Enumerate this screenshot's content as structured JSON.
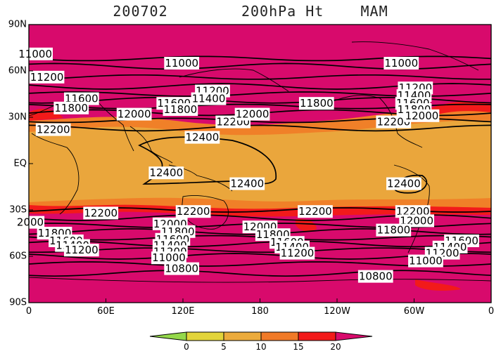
{
  "title": "200702        200hPa Ht    MAM",
  "colors": {
    "ocean_base": "#d80a6c",
    "band_orange": "#f08028",
    "band_yellow": "#eaa63c",
    "band_red": "#f21a1a",
    "contour": "#000000",
    "coast": "#000000"
  },
  "axes": {
    "lat_ticks": [
      "90N",
      "60N",
      "30N",
      "EQ",
      "30S",
      "60S",
      "90S"
    ],
    "lon_ticks": [
      "0",
      "60E",
      "120E",
      "180",
      "120W",
      "60W",
      "0"
    ]
  },
  "contour_labels": [
    {
      "text": "11000",
      "lon": 5,
      "lat": 71
    },
    {
      "text": "11200",
      "lon": 14,
      "lat": 56
    },
    {
      "text": "11600",
      "lon": 41,
      "lat": 42
    },
    {
      "text": "11800",
      "lon": 33,
      "lat": 36
    },
    {
      "text": "12000",
      "lon": 82,
      "lat": 32
    },
    {
      "text": "12200",
      "lon": 19,
      "lat": 22
    },
    {
      "text": "11000",
      "lon": 119,
      "lat": 65
    },
    {
      "text": "11200",
      "lon": 143,
      "lat": 47
    },
    {
      "text": "11400",
      "lon": 140,
      "lat": 42
    },
    {
      "text": "11600",
      "lon": 113,
      "lat": 39
    },
    {
      "text": "11800",
      "lon": 118,
      "lat": 35
    },
    {
      "text": "12200",
      "lon": 159,
      "lat": 27
    },
    {
      "text": "12000",
      "lon": 174,
      "lat": 32
    },
    {
      "text": "12400",
      "lon": 135,
      "lat": 17
    },
    {
      "text": "11800",
      "lon": 224,
      "lat": 39
    },
    {
      "text": "12200",
      "lon": 284,
      "lat": 27
    },
    {
      "text": "11000",
      "lon": 290,
      "lat": 65
    },
    {
      "text": "11200",
      "lon": 301,
      "lat": 49
    },
    {
      "text": "11400",
      "lon": 300,
      "lat": 44
    },
    {
      "text": "11600",
      "lon": 299,
      "lat": 39
    },
    {
      "text": "11800",
      "lon": 300,
      "lat": 35
    },
    {
      "text": "12000",
      "lon": 306,
      "lat": 31
    },
    {
      "text": "12400",
      "lon": 107,
      "lat": -6
    },
    {
      "text": "12400",
      "lon": 170,
      "lat": -13
    },
    {
      "text": "12400",
      "lon": 292,
      "lat": -13
    },
    {
      "text": "12200",
      "lon": 56,
      "lat": -32
    },
    {
      "text": "2000",
      "lon": 0,
      "lat": -38
    },
    {
      "text": "11800",
      "lon": 20,
      "lat": -45
    },
    {
      "text": "11600",
      "lon": 29,
      "lat": -50
    },
    {
      "text": "11400",
      "lon": 34,
      "lat": -53
    },
    {
      "text": "11200",
      "lon": 41,
      "lat": -56
    },
    {
      "text": "12200",
      "lon": 128,
      "lat": -31
    },
    {
      "text": "12000",
      "lon": 110,
      "lat": -39
    },
    {
      "text": "11800",
      "lon": 116,
      "lat": -44
    },
    {
      "text": "11600",
      "lon": 112,
      "lat": -49
    },
    {
      "text": "11400",
      "lon": 110,
      "lat": -53
    },
    {
      "text": "11200",
      "lon": 110,
      "lat": -57
    },
    {
      "text": "11000",
      "lon": 109,
      "lat": -61
    },
    {
      "text": "10800",
      "lon": 119,
      "lat": -68
    },
    {
      "text": "12200",
      "lon": 223,
      "lat": -31
    },
    {
      "text": "12000",
      "lon": 180,
      "lat": -41
    },
    {
      "text": "11800",
      "lon": 190,
      "lat": -46
    },
    {
      "text": "11600",
      "lon": 201,
      "lat": -51
    },
    {
      "text": "11400",
      "lon": 205,
      "lat": -54
    },
    {
      "text": "11200",
      "lon": 209,
      "lat": -58
    },
    {
      "text": "12200",
      "lon": 299,
      "lat": -31
    },
    {
      "text": "12000",
      "lon": 302,
      "lat": -37
    },
    {
      "text": "11800",
      "lon": 284,
      "lat": -43
    },
    {
      "text": "11600",
      "lon": 337,
      "lat": -50
    },
    {
      "text": "11400",
      "lon": 328,
      "lat": -54
    },
    {
      "text": "11200",
      "lon": 322,
      "lat": -58
    },
    {
      "text": "11000",
      "lon": 309,
      "lat": -63
    },
    {
      "text": "10800",
      "lon": 270,
      "lat": -73
    }
  ],
  "colorbar": {
    "ticks": [
      "0",
      "5",
      "10",
      "15",
      "20"
    ],
    "fills": [
      "#94d84a",
      "#e2d43a",
      "#ecab3c",
      "#f07a28",
      "#f21a1a",
      "#d80a6c"
    ]
  }
}
